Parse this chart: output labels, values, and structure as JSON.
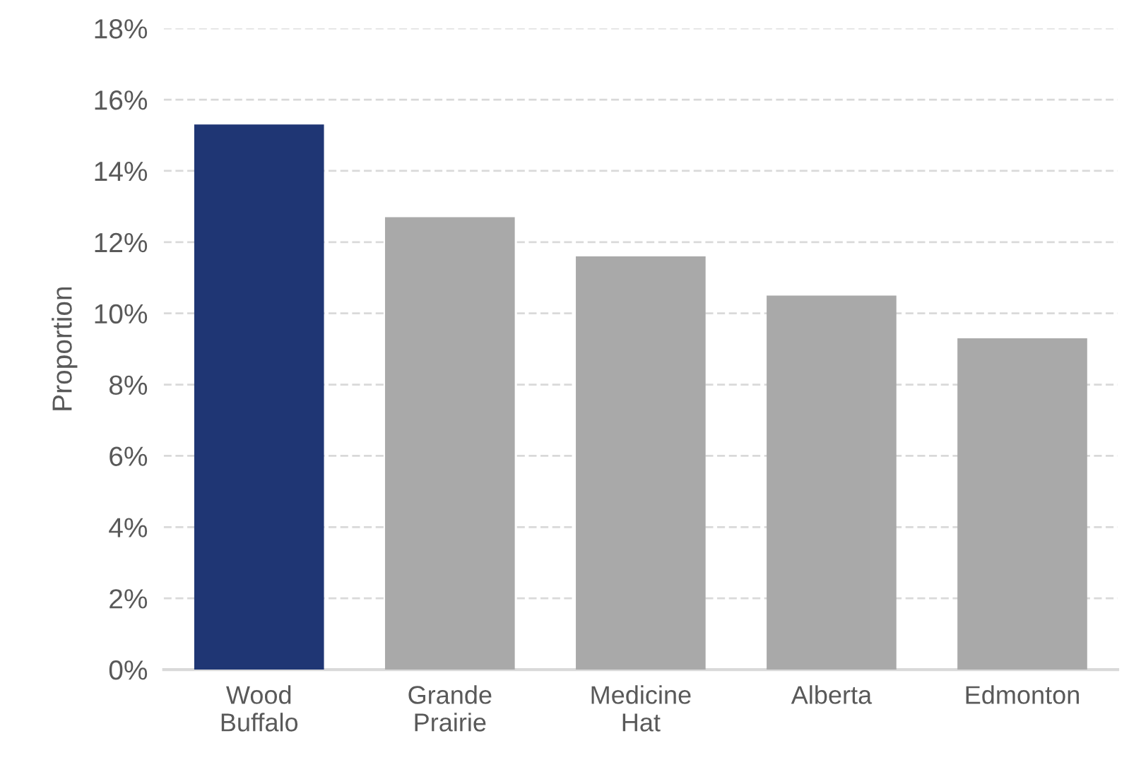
{
  "chart_data": {
    "type": "bar",
    "ylabel": "Proportion",
    "categories": [
      "Wood\nBuffalo",
      "Grande\nPrairie",
      "Medicine\nHat",
      "Alberta",
      "Edmonton"
    ],
    "values": [
      15.3,
      12.7,
      11.6,
      10.5,
      9.3
    ],
    "colors": [
      "#1f3674",
      "#a9a9a9",
      "#a9a9a9",
      "#a9a9a9",
      "#a9a9a9"
    ],
    "ylim": [
      0,
      18
    ],
    "yticks": [
      {
        "value": 0,
        "label": "0%"
      },
      {
        "value": 2,
        "label": "2%"
      },
      {
        "value": 4,
        "label": "4%"
      },
      {
        "value": 6,
        "label": "6%"
      },
      {
        "value": 8,
        "label": "8%"
      },
      {
        "value": 10,
        "label": "10%"
      },
      {
        "value": 12,
        "label": "12%"
      },
      {
        "value": 14,
        "label": "14%"
      },
      {
        "value": 16,
        "label": "16%"
      },
      {
        "value": 18,
        "label": "18%"
      }
    ],
    "grid": "y",
    "legend": false
  }
}
